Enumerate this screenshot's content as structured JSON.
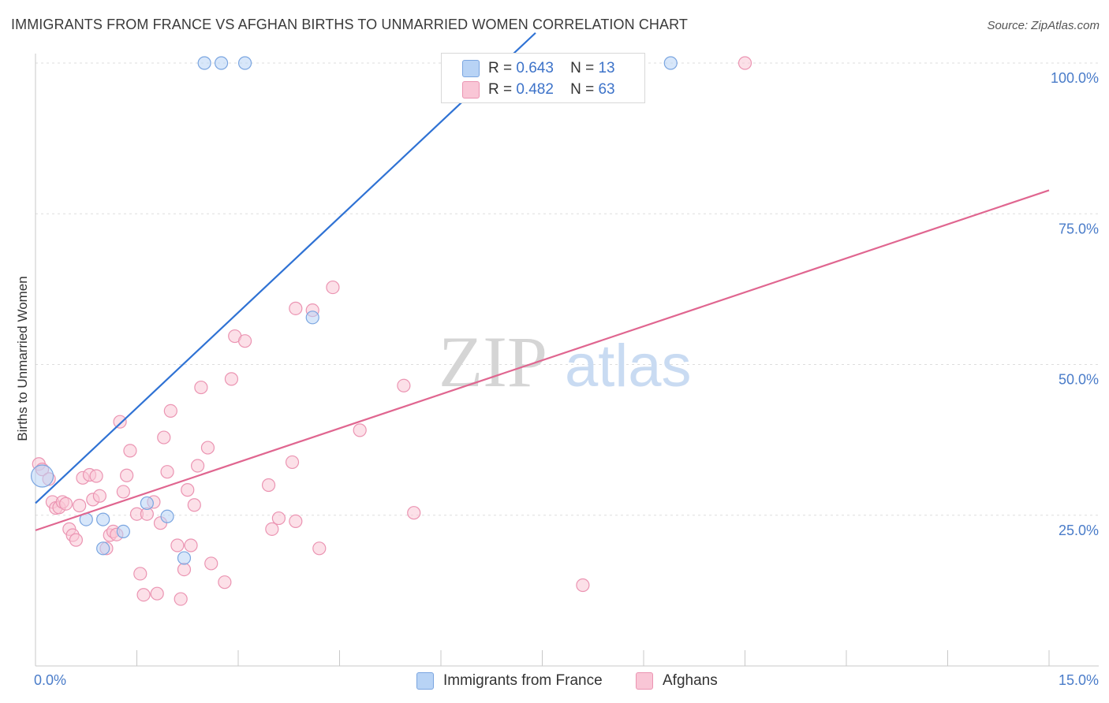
{
  "header": {
    "title": "IMMIGRANTS FROM FRANCE VS AFGHAN BIRTHS TO UNMARRIED WOMEN CORRELATION CHART",
    "source": "Source: ZipAtlas.com"
  },
  "watermark": {
    "zip": "ZIP",
    "atlas": "atlas"
  },
  "legend": {
    "france": {
      "r_label": "R =",
      "r_value": "0.643",
      "n_label": "N =",
      "n_value": "13",
      "name": "Immigrants from France"
    },
    "afghans": {
      "r_label": "R =",
      "r_value": "0.482",
      "n_label": "N =",
      "n_value": "63",
      "name": "Afghans"
    }
  },
  "colors": {
    "france_fill": "#b8d3f5",
    "france_stroke": "#7aa5e0",
    "france_line": "#2f72d4",
    "afghan_fill": "#f9c6d6",
    "afghan_stroke": "#eb94b2",
    "afghan_line": "#e06690",
    "tick_label": "#4a7cc9",
    "grid": "#dddddd"
  },
  "chart_data": {
    "type": "scatter",
    "title": "IMMIGRANTS FROM FRANCE VS AFGHAN BIRTHS TO UNMARRIED WOMEN CORRELATION CHART",
    "xlabel": "",
    "ylabel": "Births to Unmarried Women",
    "xlim": [
      0,
      15
    ],
    "ylim": [
      0,
      105
    ],
    "x_tick_labels": [
      {
        "value": 0,
        "label": "0.0%"
      },
      {
        "value": 15,
        "label": "15.0%"
      }
    ],
    "y_ticks": [
      {
        "value": 25,
        "label": "25.0%"
      },
      {
        "value": 50,
        "label": "50.0%"
      },
      {
        "value": 75,
        "label": "75.0%"
      },
      {
        "value": 100,
        "label": "100.0%"
      }
    ],
    "grid": true,
    "legend_position": "top-center",
    "series": [
      {
        "name": "Immigrants from France",
        "color": "#b8d3f5",
        "points": [
          {
            "x": 0.1,
            "y": 31.5,
            "size": "large"
          },
          {
            "x": 0.75,
            "y": 24.3
          },
          {
            "x": 1.0,
            "y": 24.3
          },
          {
            "x": 1.0,
            "y": 19.5
          },
          {
            "x": 1.3,
            "y": 22.3
          },
          {
            "x": 1.65,
            "y": 27.0
          },
          {
            "x": 1.95,
            "y": 24.8
          },
          {
            "x": 2.2,
            "y": 17.9
          },
          {
            "x": 2.5,
            "y": 100
          },
          {
            "x": 2.75,
            "y": 100
          },
          {
            "x": 3.1,
            "y": 100
          },
          {
            "x": 4.1,
            "y": 57.8
          },
          {
            "x": 9.4,
            "y": 100
          }
        ],
        "trend": {
          "x1": 0.0,
          "y1": 27.0,
          "x2": 7.4,
          "y2": 105
        }
      },
      {
        "name": "Afghans",
        "color": "#f9c6d6",
        "points": [
          {
            "x": 0.05,
            "y": 33.5
          },
          {
            "x": 0.1,
            "y": 32.6
          },
          {
            "x": 0.2,
            "y": 31.0
          },
          {
            "x": 0.25,
            "y": 27.2
          },
          {
            "x": 0.3,
            "y": 26.2
          },
          {
            "x": 0.35,
            "y": 26.3
          },
          {
            "x": 0.4,
            "y": 27.2
          },
          {
            "x": 0.45,
            "y": 26.9
          },
          {
            "x": 0.5,
            "y": 22.7
          },
          {
            "x": 0.55,
            "y": 21.7
          },
          {
            "x": 0.6,
            "y": 20.9
          },
          {
            "x": 0.65,
            "y": 26.6
          },
          {
            "x": 0.7,
            "y": 31.2
          },
          {
            "x": 0.8,
            "y": 31.7
          },
          {
            "x": 0.85,
            "y": 27.6
          },
          {
            "x": 0.9,
            "y": 31.5
          },
          {
            "x": 0.95,
            "y": 28.2
          },
          {
            "x": 1.05,
            "y": 19.5
          },
          {
            "x": 1.1,
            "y": 21.7
          },
          {
            "x": 1.15,
            "y": 22.3
          },
          {
            "x": 1.2,
            "y": 21.8
          },
          {
            "x": 1.25,
            "y": 40.5
          },
          {
            "x": 1.3,
            "y": 28.9
          },
          {
            "x": 1.35,
            "y": 31.6
          },
          {
            "x": 1.4,
            "y": 35.7
          },
          {
            "x": 1.5,
            "y": 25.2
          },
          {
            "x": 1.55,
            "y": 15.3
          },
          {
            "x": 1.6,
            "y": 11.8
          },
          {
            "x": 1.65,
            "y": 25.2
          },
          {
            "x": 1.75,
            "y": 27.2
          },
          {
            "x": 1.8,
            "y": 12.0
          },
          {
            "x": 1.85,
            "y": 23.7
          },
          {
            "x": 1.9,
            "y": 37.9
          },
          {
            "x": 1.95,
            "y": 32.2
          },
          {
            "x": 2.0,
            "y": 42.3
          },
          {
            "x": 2.1,
            "y": 20.0
          },
          {
            "x": 2.15,
            "y": 11.1
          },
          {
            "x": 2.2,
            "y": 16.0
          },
          {
            "x": 2.25,
            "y": 29.2
          },
          {
            "x": 2.3,
            "y": 20.0
          },
          {
            "x": 2.35,
            "y": 26.7
          },
          {
            "x": 2.4,
            "y": 33.2
          },
          {
            "x": 2.45,
            "y": 46.2
          },
          {
            "x": 2.55,
            "y": 36.2
          },
          {
            "x": 2.6,
            "y": 17.0
          },
          {
            "x": 2.8,
            "y": 13.9
          },
          {
            "x": 2.9,
            "y": 47.6
          },
          {
            "x": 2.95,
            "y": 54.7
          },
          {
            "x": 3.1,
            "y": 53.9
          },
          {
            "x": 3.45,
            "y": 30.0
          },
          {
            "x": 3.5,
            "y": 22.7
          },
          {
            "x": 3.6,
            "y": 24.5
          },
          {
            "x": 3.8,
            "y": 33.8
          },
          {
            "x": 3.85,
            "y": 24.0
          },
          {
            "x": 3.85,
            "y": 59.3
          },
          {
            "x": 4.1,
            "y": 59.0
          },
          {
            "x": 4.2,
            "y": 19.5
          },
          {
            "x": 4.4,
            "y": 62.8
          },
          {
            "x": 4.8,
            "y": 39.1
          },
          {
            "x": 5.45,
            "y": 46.5
          },
          {
            "x": 5.6,
            "y": 25.4
          },
          {
            "x": 8.1,
            "y": 13.4
          },
          {
            "x": 10.5,
            "y": 100
          }
        ],
        "trend": {
          "x1": 0.0,
          "y1": 22.5,
          "x2": 15.0,
          "y2": 78.9
        }
      }
    ]
  }
}
